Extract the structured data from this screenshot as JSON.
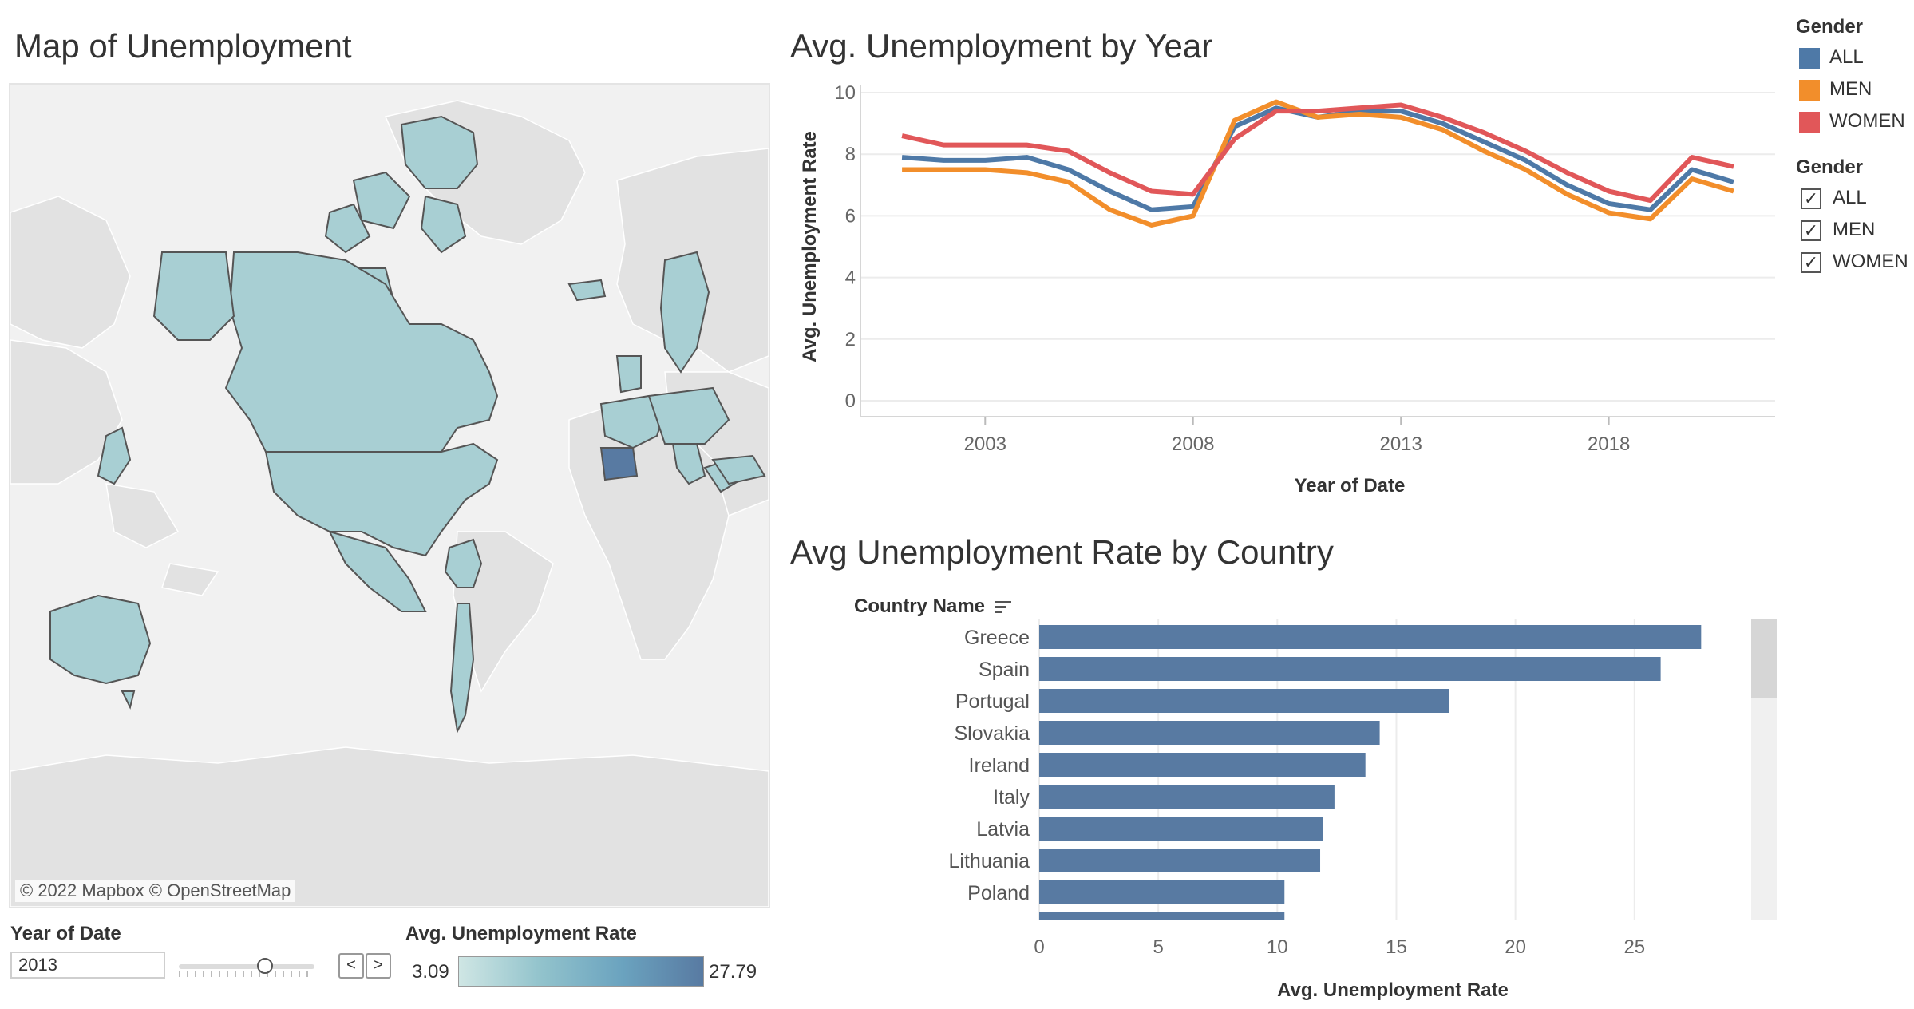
{
  "map": {
    "title": "Map of Unemployment",
    "attribution": "© 2022 Mapbox  © OpenStreetMap",
    "year_label": "Year of Date",
    "year_value": "2013",
    "prev_label": "<",
    "next_label": ">",
    "legend_title": "Avg. Unemployment Rate",
    "legend_min": "3.09",
    "legend_max": "27.79",
    "colors": {
      "land": "#e2e2e2",
      "selected": "#a8cfd3",
      "high": "#587aa2",
      "ocean": "#f1f1f1"
    }
  },
  "line_chart": {
    "title": "Avg. Unemployment by Year",
    "xlabel": "Year of Date",
    "ylabel": "Avg. Unemployment Rate"
  },
  "legend": {
    "color_title": "Gender",
    "filter_title": "Gender",
    "items": [
      {
        "label": "ALL",
        "color": "#4e79a7"
      },
      {
        "label": "MEN",
        "color": "#f28e2b"
      },
      {
        "label": "WOMEN",
        "color": "#e15759"
      }
    ],
    "filters": [
      {
        "label": "ALL",
        "checked": true
      },
      {
        "label": "MEN",
        "checked": true
      },
      {
        "label": "WOMEN",
        "checked": true
      }
    ]
  },
  "bar_chart": {
    "title": "Avg Unemployment Rate by Country",
    "column_header": "Country Name",
    "xlabel": "Avg. Unemployment Rate"
  },
  "chart_data": [
    {
      "type": "line",
      "title": "Avg. Unemployment by Year",
      "xlabel": "Year of Date",
      "ylabel": "Avg. Unemployment Rate",
      "x": [
        2001,
        2002,
        2003,
        2004,
        2005,
        2006,
        2007,
        2008,
        2009,
        2010,
        2011,
        2012,
        2013,
        2014,
        2015,
        2016,
        2017,
        2018,
        2019,
        2020,
        2021
      ],
      "xticks": [
        2003,
        2008,
        2013,
        2018
      ],
      "yticks": [
        0,
        2,
        4,
        6,
        8,
        10
      ],
      "ylim": [
        0,
        10
      ],
      "grid": true,
      "legend": "right",
      "series": [
        {
          "name": "ALL",
          "color": "#4e79a7",
          "values": [
            7.9,
            7.8,
            7.8,
            7.9,
            7.5,
            6.8,
            6.2,
            6.3,
            8.9,
            9.5,
            9.2,
            9.4,
            9.4,
            9.0,
            8.4,
            7.8,
            7.0,
            6.4,
            6.2,
            7.5,
            7.1
          ]
        },
        {
          "name": "MEN",
          "color": "#f28e2b",
          "values": [
            7.5,
            7.5,
            7.5,
            7.4,
            7.1,
            6.2,
            5.7,
            6.0,
            9.1,
            9.7,
            9.2,
            9.3,
            9.2,
            8.8,
            8.1,
            7.5,
            6.7,
            6.1,
            5.9,
            7.2,
            6.8
          ]
        },
        {
          "name": "WOMEN",
          "color": "#e15759",
          "values": [
            8.6,
            8.3,
            8.3,
            8.3,
            8.1,
            7.4,
            6.8,
            6.7,
            8.5,
            9.4,
            9.4,
            9.5,
            9.6,
            9.2,
            8.7,
            8.1,
            7.4,
            6.8,
            6.5,
            7.9,
            7.6
          ]
        }
      ]
    },
    {
      "type": "bar",
      "orientation": "horizontal",
      "title": "Avg Unemployment Rate by Country",
      "xlabel": "Avg. Unemployment Rate",
      "color": "#587aa2",
      "categories": [
        "Greece",
        "Spain",
        "Portugal",
        "Slovakia",
        "Ireland",
        "Italy",
        "Latvia",
        "Lithuania",
        "Poland"
      ],
      "values": [
        27.8,
        26.1,
        17.2,
        14.3,
        13.7,
        12.4,
        11.9,
        11.8,
        10.3
      ],
      "partial_next_value": 10.3,
      "xticks": [
        0,
        5,
        10,
        15,
        20,
        25
      ],
      "xlim": [
        0,
        29.7
      ],
      "grid": true
    }
  ]
}
